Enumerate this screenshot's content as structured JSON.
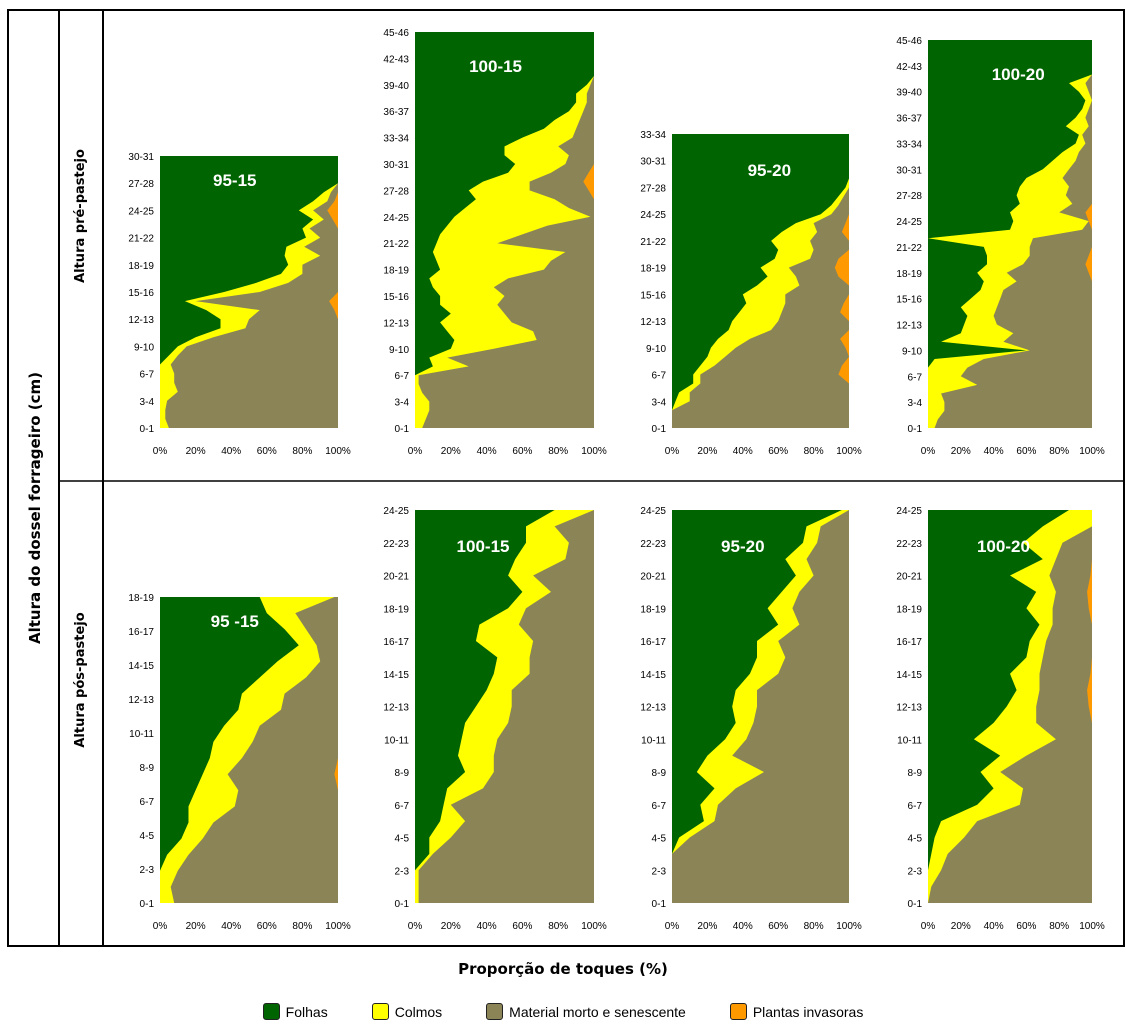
{
  "y_axis_title": "Altura do dossel forrageiro (cm)",
  "x_axis_title": "Proporção de toques (%)",
  "row_labels": [
    "Altura pré-pastejo",
    "Altura pós-pastejo"
  ],
  "colors": {
    "Folhas": "#006400",
    "Colmos": "#ffff00",
    "Material morto e senescente": "#8b8457",
    "Plantas invasoras": "#ff9900"
  },
  "legend": [
    {
      "label": "Folhas",
      "color": "#006400"
    },
    {
      "label": "Colmos",
      "color": "#ffff00"
    },
    {
      "label": "Material morto e senescente",
      "color": "#8b8457"
    },
    {
      "label": "Plantas invasoras",
      "color": "#ff9900"
    }
  ],
  "chart_data": [
    {
      "type": "area",
      "title": "95-15",
      "row": "Altura pré-pastejo",
      "x_ticks": [
        "0%",
        "20%",
        "40%",
        "60%",
        "80%",
        "100%"
      ],
      "y_ticks": [
        "0-1",
        "3-4",
        "6-7",
        "9-10",
        "12-13",
        "15-16",
        "18-19",
        "21-22",
        "24-25",
        "27-28",
        "30-31"
      ],
      "folhas": [
        0,
        0,
        0,
        0,
        0,
        0,
        0,
        0,
        5,
        10,
        20,
        34,
        34,
        26,
        14,
        36,
        54,
        68,
        72,
        70,
        71,
        82,
        80,
        86,
        78,
        86,
        92,
        100,
        100,
        100,
        100
      ],
      "colmos": [
        5,
        3,
        3,
        4,
        10,
        8,
        8,
        6,
        5,
        5,
        10,
        14,
        16,
        30,
        6,
        20,
        18,
        12,
        8,
        20,
        10,
        8,
        4,
        6,
        8,
        8,
        4,
        0,
        0,
        0,
        0
      ],
      "invasoras": [
        0,
        0,
        0,
        0,
        0,
        0,
        0,
        0,
        0,
        0,
        0,
        0,
        0,
        2,
        5,
        0,
        0,
        0,
        0,
        0,
        0,
        0,
        0,
        3,
        6,
        2,
        0,
        0,
        0,
        0,
        0
      ]
    },
    {
      "type": "area",
      "title": "100-15",
      "row": "Altura pré-pastejo",
      "x_ticks": [
        "0%",
        "20%",
        "40%",
        "60%",
        "80%",
        "100%"
      ],
      "y_ticks": [
        "0-1",
        "3-4",
        "6-7",
        "9-10",
        "12-13",
        "15-16",
        "18-19",
        "21-22",
        "24-25",
        "27-28",
        "30-31",
        "33-34",
        "36-37",
        "39-40",
        "42-43",
        "45-46"
      ],
      "folhas": [
        0,
        0,
        0,
        0,
        0,
        0,
        0,
        10,
        8,
        20,
        22,
        18,
        14,
        20,
        14,
        14,
        10,
        8,
        14,
        12,
        10,
        12,
        14,
        18,
        22,
        28,
        34,
        30,
        38,
        52,
        56,
        50,
        50,
        60,
        72,
        78,
        86,
        90,
        90,
        96,
        100,
        100,
        100,
        100,
        100,
        100
      ],
      "colmos": [
        4,
        6,
        8,
        8,
        4,
        2,
        2,
        20,
        10,
        24,
        46,
        48,
        40,
        30,
        32,
        36,
        34,
        44,
        58,
        64,
        74,
        34,
        46,
        56,
        76,
        58,
        44,
        34,
        26,
        24,
        28,
        36,
        30,
        28,
        18,
        14,
        8,
        6,
        6,
        2,
        0,
        0,
        0,
        0,
        0,
        0
      ],
      "invasoras": [
        0,
        0,
        0,
        0,
        0,
        0,
        0,
        0,
        0,
        0,
        0,
        0,
        0,
        0,
        0,
        0,
        0,
        0,
        0,
        0,
        0,
        0,
        0,
        0,
        0,
        0,
        0,
        3,
        6,
        3,
        0,
        0,
        0,
        0,
        0,
        0,
        0,
        0,
        0,
        0,
        0,
        0,
        0,
        0,
        0,
        0
      ]
    },
    {
      "type": "area",
      "title": "95-20",
      "row": "Altura pré-pastejo",
      "x_ticks": [
        "0%",
        "20%",
        "40%",
        "60%",
        "80%",
        "100%"
      ],
      "y_ticks": [
        "0-1",
        "3-4",
        "6-7",
        "9-10",
        "12-13",
        "15-16",
        "18-19",
        "21-22",
        "24-25",
        "27-28",
        "30-31",
        "33-34"
      ],
      "folhas": [
        0,
        0,
        0,
        2,
        4,
        12,
        12,
        16,
        20,
        22,
        26,
        32,
        34,
        38,
        42,
        40,
        48,
        54,
        50,
        58,
        60,
        56,
        62,
        70,
        84,
        90,
        94,
        98,
        100,
        100,
        100,
        100,
        100,
        100
      ],
      "colmos": [
        0,
        0,
        0,
        8,
        6,
        4,
        4,
        8,
        10,
        14,
        18,
        24,
        26,
        24,
        22,
        24,
        24,
        16,
        16,
        20,
        20,
        22,
        20,
        10,
        6,
        4,
        3,
        2,
        0,
        0,
        0,
        0,
        0,
        0
      ],
      "invasoras": [
        0,
        0,
        0,
        0,
        0,
        0,
        6,
        4,
        0,
        2,
        5,
        0,
        0,
        5,
        3,
        0,
        0,
        6,
        8,
        6,
        0,
        0,
        4,
        2,
        0,
        0,
        0,
        0,
        0,
        0,
        0,
        0,
        0,
        0
      ]
    },
    {
      "type": "area",
      "title": "100-20",
      "row": "Altura pré-pastejo",
      "x_ticks": [
        "0%",
        "20%",
        "40%",
        "60%",
        "80%",
        "100%"
      ],
      "y_ticks": [
        "0-1",
        "3-4",
        "6-7",
        "9-10",
        "12-13",
        "15-16",
        "18-19",
        "21-22",
        "24-25",
        "27-28",
        "30-31",
        "33-34",
        "36-37",
        "39-40",
        "42-43",
        "45-46"
      ],
      "folhas": [
        0,
        0,
        0,
        0,
        0,
        0,
        0,
        0,
        4,
        60,
        8,
        20,
        22,
        24,
        20,
        26,
        32,
        34,
        30,
        36,
        36,
        34,
        0,
        50,
        52,
        50,
        56,
        54,
        56,
        60,
        70,
        76,
        82,
        90,
        92,
        84,
        90,
        94,
        96,
        92,
        86,
        100,
        100,
        100,
        100,
        100
      ],
      "colmos": [
        4,
        6,
        10,
        10,
        8,
        30,
        20,
        24,
        30,
        2,
        38,
        32,
        20,
        16,
        22,
        18,
        14,
        20,
        18,
        22,
        26,
        28,
        64,
        44,
        46,
        30,
        32,
        30,
        30,
        22,
        16,
        14,
        10,
        6,
        2,
        14,
        6,
        4,
        4,
        6,
        10,
        0,
        0,
        0,
        0,
        0
      ],
      "invasoras": [
        0,
        0,
        0,
        0,
        0,
        0,
        0,
        0,
        0,
        0,
        0,
        0,
        0,
        0,
        0,
        0,
        0,
        0,
        2,
        4,
        2,
        0,
        0,
        0,
        2,
        4,
        0,
        0,
        0,
        0,
        0,
        0,
        0,
        0,
        0,
        0,
        0,
        0,
        0,
        0,
        0,
        0,
        0,
        0,
        0,
        0
      ]
    },
    {
      "type": "area",
      "title": "95 -15",
      "row": "Altura pós-pastejo",
      "x_ticks": [
        "0%",
        "20%",
        "40%",
        "60%",
        "80%",
        "100%"
      ],
      "y_ticks": [
        "0-1",
        "2-3",
        "4-5",
        "6-7",
        "8-9",
        "10-11",
        "12-13",
        "14-15",
        "16-17",
        "18-19"
      ],
      "folhas": [
        0,
        0,
        0,
        4,
        12,
        16,
        16,
        20,
        24,
        28,
        30,
        36,
        44,
        46,
        56,
        66,
        78,
        70,
        60,
        56
      ],
      "colmos": [
        8,
        6,
        10,
        12,
        12,
        14,
        26,
        24,
        14,
        18,
        22,
        20,
        24,
        24,
        26,
        24,
        10,
        12,
        16,
        42
      ],
      "invasoras": [
        0,
        0,
        0,
        0,
        0,
        0,
        0,
        0,
        2,
        0,
        0,
        0,
        0,
        0,
        0,
        0,
        0,
        0,
        0,
        0
      ]
    },
    {
      "type": "area",
      "title": "100-15",
      "row": "Altura pós-pastejo",
      "x_ticks": [
        "0%",
        "20%",
        "40%",
        "60%",
        "80%",
        "100%"
      ],
      "y_ticks": [
        "0-1",
        "2-3",
        "4-5",
        "6-7",
        "8-9",
        "10-11",
        "12-13",
        "14-15",
        "16-17",
        "18-19",
        "20-21",
        "22-23",
        "24-25"
      ],
      "folhas": [
        0,
        0,
        0,
        8,
        8,
        14,
        16,
        18,
        28,
        24,
        26,
        28,
        34,
        40,
        44,
        46,
        34,
        36,
        52,
        60,
        52,
        56,
        62,
        62,
        78
      ],
      "colmos": [
        2,
        2,
        2,
        2,
        12,
        14,
        4,
        20,
        16,
        20,
        20,
        24,
        20,
        14,
        20,
        18,
        32,
        22,
        10,
        16,
        14,
        28,
        24,
        16,
        22
      ],
      "invasoras": [
        0,
        0,
        0,
        0,
        0,
        0,
        0,
        0,
        0,
        0,
        0,
        0,
        0,
        0,
        0,
        0,
        0,
        0,
        0,
        0,
        0,
        0,
        0,
        0,
        0
      ]
    },
    {
      "type": "area",
      "title": "95-20",
      "row": "Altura pós-pastejo",
      "x_ticks": [
        "0%",
        "20%",
        "40%",
        "60%",
        "80%",
        "100%"
      ],
      "y_ticks": [
        "0-1",
        "2-3",
        "4-5",
        "6-7",
        "8-9",
        "10-11",
        "12-13",
        "14-15",
        "16-17",
        "18-19",
        "20-21",
        "22-23",
        "24-25"
      ],
      "folhas": [
        0,
        0,
        0,
        0,
        4,
        18,
        16,
        24,
        14,
        20,
        30,
        36,
        34,
        36,
        44,
        48,
        48,
        60,
        54,
        62,
        70,
        64,
        74,
        76,
        96
      ],
      "colmos": [
        0,
        0,
        0,
        0,
        6,
        6,
        10,
        12,
        38,
        14,
        12,
        10,
        14,
        12,
        16,
        16,
        12,
        12,
        14,
        10,
        10,
        12,
        8,
        8,
        4
      ],
      "invasoras": [
        0,
        0,
        0,
        0,
        0,
        0,
        0,
        0,
        0,
        0,
        0,
        0,
        0,
        0,
        0,
        0,
        0,
        0,
        0,
        0,
        0,
        0,
        0,
        0,
        0
      ]
    },
    {
      "type": "area",
      "title": "100-20",
      "row": "Altura pós-pastejo",
      "x_ticks": [
        "0%",
        "20%",
        "40%",
        "60%",
        "80%",
        "100%"
      ],
      "y_ticks": [
        "0-1",
        "2-3",
        "4-5",
        "6-7",
        "8-9",
        "10-11",
        "12-13",
        "14-15",
        "16-17",
        "18-19",
        "20-21",
        "22-23",
        "24-25"
      ],
      "folhas": [
        0,
        0,
        0,
        2,
        4,
        8,
        30,
        40,
        32,
        44,
        28,
        40,
        48,
        54,
        50,
        60,
        62,
        68,
        60,
        66,
        50,
        70,
        58,
        70,
        86
      ],
      "colmos": [
        0,
        2,
        8,
        10,
        18,
        22,
        26,
        18,
        12,
        16,
        50,
        26,
        18,
        14,
        18,
        10,
        10,
        8,
        16,
        12,
        24,
        8,
        24,
        30,
        14
      ],
      "invasoras": [
        0,
        0,
        0,
        0,
        0,
        0,
        0,
        0,
        0,
        0,
        0,
        0,
        2,
        3,
        1,
        0,
        0,
        0,
        2,
        3,
        1,
        0,
        0,
        0,
        0
      ]
    }
  ]
}
